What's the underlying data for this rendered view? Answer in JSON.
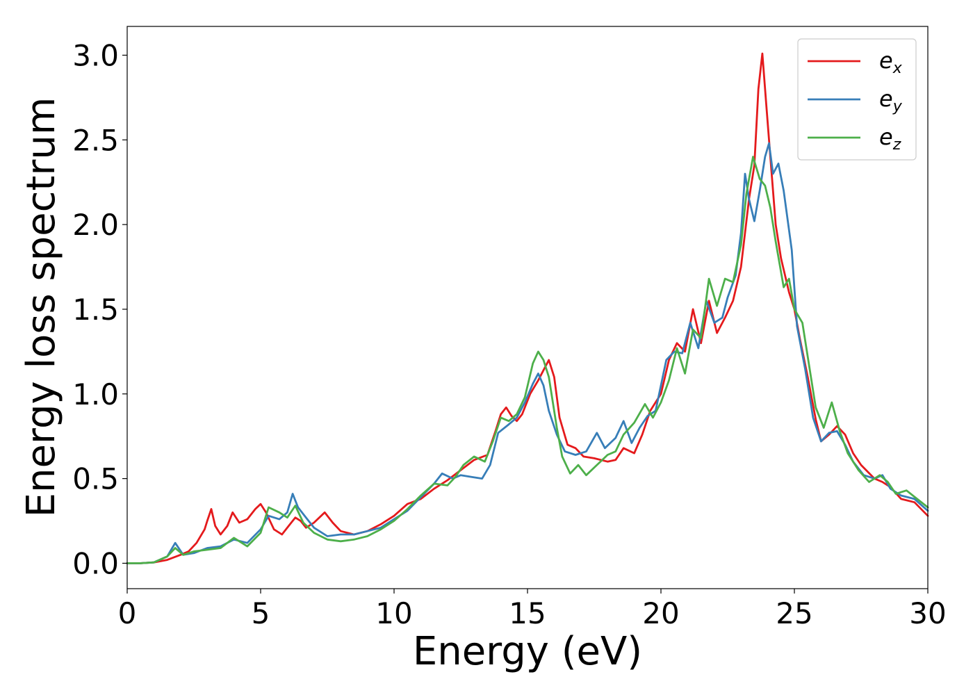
{
  "chart_data": {
    "type": "line",
    "xlabel": "Energy (eV)",
    "ylabel": "Energy loss spectrum",
    "xlim": [
      0,
      30
    ],
    "ylim": [
      -0.15,
      3.17
    ],
    "xticks": [
      0,
      5,
      10,
      15,
      20,
      25,
      30
    ],
    "xtick_labels": [
      "0",
      "5",
      "10",
      "15",
      "20",
      "25",
      "30"
    ],
    "yticks": [
      0.0,
      0.5,
      1.0,
      1.5,
      2.0,
      2.5,
      3.0
    ],
    "ytick_labels": [
      "0.0",
      "0.5",
      "1.0",
      "1.5",
      "2.0",
      "2.5",
      "3.0"
    ],
    "grid": false,
    "legend": "top-right",
    "series": [
      {
        "name": "e_x",
        "label_base": "e",
        "label_sub": "x",
        "color": "#e41a1c",
        "points": [
          [
            0,
            0.0
          ],
          [
            0.5,
            0.0
          ],
          [
            1.0,
            0.005
          ],
          [
            1.5,
            0.02
          ],
          [
            2.0,
            0.05
          ],
          [
            2.3,
            0.07
          ],
          [
            2.6,
            0.12
          ],
          [
            2.9,
            0.2
          ],
          [
            3.0,
            0.25
          ],
          [
            3.15,
            0.32
          ],
          [
            3.3,
            0.22
          ],
          [
            3.5,
            0.17
          ],
          [
            3.75,
            0.22
          ],
          [
            3.95,
            0.3
          ],
          [
            4.2,
            0.24
          ],
          [
            4.5,
            0.26
          ],
          [
            4.8,
            0.32
          ],
          [
            5.0,
            0.35
          ],
          [
            5.2,
            0.3
          ],
          [
            5.5,
            0.2
          ],
          [
            5.8,
            0.17
          ],
          [
            6.1,
            0.23
          ],
          [
            6.3,
            0.27
          ],
          [
            6.5,
            0.25
          ],
          [
            6.7,
            0.21
          ],
          [
            7.0,
            0.24
          ],
          [
            7.4,
            0.3
          ],
          [
            7.7,
            0.24
          ],
          [
            8.0,
            0.19
          ],
          [
            8.5,
            0.17
          ],
          [
            9.0,
            0.19
          ],
          [
            9.5,
            0.23
          ],
          [
            10.0,
            0.28
          ],
          [
            10.5,
            0.35
          ],
          [
            11.0,
            0.38
          ],
          [
            11.5,
            0.44
          ],
          [
            12.0,
            0.49
          ],
          [
            12.5,
            0.55
          ],
          [
            13.0,
            0.61
          ],
          [
            13.5,
            0.64
          ],
          [
            13.8,
            0.78
          ],
          [
            14.0,
            0.88
          ],
          [
            14.2,
            0.92
          ],
          [
            14.4,
            0.87
          ],
          [
            14.6,
            0.84
          ],
          [
            14.8,
            0.88
          ],
          [
            15.1,
            1.0
          ],
          [
            15.4,
            1.08
          ],
          [
            15.6,
            1.14
          ],
          [
            15.8,
            1.2
          ],
          [
            16.0,
            1.1
          ],
          [
            16.2,
            0.86
          ],
          [
            16.5,
            0.7
          ],
          [
            16.8,
            0.68
          ],
          [
            17.1,
            0.63
          ],
          [
            17.5,
            0.62
          ],
          [
            18.0,
            0.6
          ],
          [
            18.3,
            0.61
          ],
          [
            18.6,
            0.68
          ],
          [
            19.0,
            0.65
          ],
          [
            19.3,
            0.76
          ],
          [
            19.6,
            0.9
          ],
          [
            20.0,
            1.0
          ],
          [
            20.3,
            1.2
          ],
          [
            20.6,
            1.3
          ],
          [
            20.9,
            1.25
          ],
          [
            21.2,
            1.5
          ],
          [
            21.5,
            1.3
          ],
          [
            21.8,
            1.55
          ],
          [
            22.1,
            1.36
          ],
          [
            22.4,
            1.45
          ],
          [
            22.7,
            1.55
          ],
          [
            23.0,
            1.75
          ],
          [
            23.3,
            2.15
          ],
          [
            23.5,
            2.35
          ],
          [
            23.65,
            2.8
          ],
          [
            23.8,
            3.01
          ],
          [
            23.95,
            2.7
          ],
          [
            24.1,
            2.4
          ],
          [
            24.3,
            2.0
          ],
          [
            24.5,
            1.8
          ],
          [
            24.8,
            1.6
          ],
          [
            25.0,
            1.5
          ],
          [
            25.2,
            1.33
          ],
          [
            25.5,
            1.1
          ],
          [
            25.8,
            0.85
          ],
          [
            26.0,
            0.72
          ],
          [
            26.3,
            0.76
          ],
          [
            26.6,
            0.81
          ],
          [
            26.9,
            0.76
          ],
          [
            27.2,
            0.65
          ],
          [
            27.5,
            0.58
          ],
          [
            28.0,
            0.5
          ],
          [
            28.3,
            0.48
          ],
          [
            28.6,
            0.45
          ],
          [
            29.0,
            0.38
          ],
          [
            29.5,
            0.36
          ],
          [
            30.0,
            0.28
          ]
        ]
      },
      {
        "name": "e_y",
        "label_base": "e",
        "label_sub": "y",
        "color": "#377eb8",
        "points": [
          [
            0,
            0.0
          ],
          [
            0.5,
            0.0
          ],
          [
            1.0,
            0.005
          ],
          [
            1.5,
            0.04
          ],
          [
            1.8,
            0.12
          ],
          [
            2.1,
            0.05
          ],
          [
            2.5,
            0.06
          ],
          [
            3.0,
            0.09
          ],
          [
            3.5,
            0.1
          ],
          [
            4.0,
            0.14
          ],
          [
            4.5,
            0.12
          ],
          [
            5.0,
            0.2
          ],
          [
            5.3,
            0.28
          ],
          [
            5.7,
            0.26
          ],
          [
            6.0,
            0.3
          ],
          [
            6.2,
            0.41
          ],
          [
            6.4,
            0.33
          ],
          [
            6.7,
            0.27
          ],
          [
            7.0,
            0.21
          ],
          [
            7.5,
            0.16
          ],
          [
            8.0,
            0.17
          ],
          [
            8.5,
            0.17
          ],
          [
            9.0,
            0.19
          ],
          [
            9.5,
            0.21
          ],
          [
            10.0,
            0.26
          ],
          [
            10.5,
            0.31
          ],
          [
            11.0,
            0.39
          ],
          [
            11.5,
            0.47
          ],
          [
            11.8,
            0.53
          ],
          [
            12.2,
            0.5
          ],
          [
            12.5,
            0.52
          ],
          [
            12.9,
            0.51
          ],
          [
            13.3,
            0.5
          ],
          [
            13.6,
            0.58
          ],
          [
            13.9,
            0.77
          ],
          [
            14.3,
            0.82
          ],
          [
            14.6,
            0.86
          ],
          [
            14.9,
            0.95
          ],
          [
            15.2,
            1.06
          ],
          [
            15.4,
            1.12
          ],
          [
            15.6,
            1.05
          ],
          [
            15.8,
            0.9
          ],
          [
            16.1,
            0.76
          ],
          [
            16.4,
            0.66
          ],
          [
            16.8,
            0.64
          ],
          [
            17.2,
            0.66
          ],
          [
            17.6,
            0.77
          ],
          [
            17.9,
            0.68
          ],
          [
            18.3,
            0.74
          ],
          [
            18.6,
            0.84
          ],
          [
            18.9,
            0.71
          ],
          [
            19.2,
            0.8
          ],
          [
            19.5,
            0.87
          ],
          [
            19.8,
            0.9
          ],
          [
            20.2,
            1.2
          ],
          [
            20.5,
            1.25
          ],
          [
            20.8,
            1.24
          ],
          [
            21.1,
            1.42
          ],
          [
            21.4,
            1.27
          ],
          [
            21.7,
            1.55
          ],
          [
            22.0,
            1.42
          ],
          [
            22.3,
            1.45
          ],
          [
            22.5,
            1.57
          ],
          [
            22.8,
            1.7
          ],
          [
            23.0,
            1.95
          ],
          [
            23.15,
            2.3
          ],
          [
            23.3,
            2.15
          ],
          [
            23.5,
            2.02
          ],
          [
            23.7,
            2.2
          ],
          [
            23.9,
            2.4
          ],
          [
            24.05,
            2.48
          ],
          [
            24.2,
            2.3
          ],
          [
            24.4,
            2.36
          ],
          [
            24.6,
            2.2
          ],
          [
            24.9,
            1.85
          ],
          [
            25.1,
            1.4
          ],
          [
            25.4,
            1.15
          ],
          [
            25.7,
            0.86
          ],
          [
            26.0,
            0.72
          ],
          [
            26.3,
            0.77
          ],
          [
            26.6,
            0.78
          ],
          [
            26.9,
            0.7
          ],
          [
            27.2,
            0.6
          ],
          [
            27.6,
            0.52
          ],
          [
            28.0,
            0.5
          ],
          [
            28.3,
            0.52
          ],
          [
            28.6,
            0.44
          ],
          [
            29.0,
            0.4
          ],
          [
            29.5,
            0.38
          ],
          [
            30.0,
            0.31
          ]
        ]
      },
      {
        "name": "e_z",
        "label_base": "e",
        "label_sub": "z",
        "color": "#4daf4a",
        "points": [
          [
            0,
            0.0
          ],
          [
            0.5,
            0.0
          ],
          [
            1.0,
            0.005
          ],
          [
            1.5,
            0.04
          ],
          [
            1.8,
            0.09
          ],
          [
            2.1,
            0.05
          ],
          [
            2.5,
            0.07
          ],
          [
            3.0,
            0.08
          ],
          [
            3.5,
            0.09
          ],
          [
            4.0,
            0.15
          ],
          [
            4.5,
            0.1
          ],
          [
            5.0,
            0.18
          ],
          [
            5.3,
            0.33
          ],
          [
            5.7,
            0.3
          ],
          [
            6.0,
            0.27
          ],
          [
            6.3,
            0.34
          ],
          [
            6.6,
            0.24
          ],
          [
            7.0,
            0.18
          ],
          [
            7.5,
            0.14
          ],
          [
            8.0,
            0.13
          ],
          [
            8.5,
            0.14
          ],
          [
            9.0,
            0.16
          ],
          [
            9.5,
            0.2
          ],
          [
            10.0,
            0.25
          ],
          [
            10.5,
            0.32
          ],
          [
            11.0,
            0.4
          ],
          [
            11.5,
            0.47
          ],
          [
            12.0,
            0.46
          ],
          [
            12.3,
            0.51
          ],
          [
            12.6,
            0.58
          ],
          [
            13.0,
            0.63
          ],
          [
            13.4,
            0.6
          ],
          [
            13.7,
            0.72
          ],
          [
            14.0,
            0.86
          ],
          [
            14.3,
            0.84
          ],
          [
            14.6,
            0.88
          ],
          [
            14.9,
            0.98
          ],
          [
            15.2,
            1.18
          ],
          [
            15.4,
            1.25
          ],
          [
            15.6,
            1.2
          ],
          [
            15.8,
            1.1
          ],
          [
            16.1,
            0.8
          ],
          [
            16.3,
            0.63
          ],
          [
            16.6,
            0.53
          ],
          [
            16.9,
            0.58
          ],
          [
            17.2,
            0.52
          ],
          [
            17.6,
            0.58
          ],
          [
            18.0,
            0.64
          ],
          [
            18.3,
            0.66
          ],
          [
            18.6,
            0.76
          ],
          [
            19.0,
            0.83
          ],
          [
            19.4,
            0.94
          ],
          [
            19.7,
            0.86
          ],
          [
            20.0,
            0.95
          ],
          [
            20.3,
            1.08
          ],
          [
            20.6,
            1.27
          ],
          [
            20.9,
            1.12
          ],
          [
            21.2,
            1.38
          ],
          [
            21.5,
            1.33
          ],
          [
            21.8,
            1.68
          ],
          [
            22.1,
            1.52
          ],
          [
            22.4,
            1.68
          ],
          [
            22.7,
            1.66
          ],
          [
            23.0,
            1.88
          ],
          [
            23.2,
            2.18
          ],
          [
            23.45,
            2.4
          ],
          [
            23.7,
            2.27
          ],
          [
            23.9,
            2.23
          ],
          [
            24.1,
            2.1
          ],
          [
            24.3,
            1.9
          ],
          [
            24.6,
            1.63
          ],
          [
            24.8,
            1.68
          ],
          [
            25.0,
            1.5
          ],
          [
            25.3,
            1.42
          ],
          [
            25.5,
            1.22
          ],
          [
            25.8,
            0.92
          ],
          [
            26.1,
            0.8
          ],
          [
            26.4,
            0.95
          ],
          [
            26.7,
            0.78
          ],
          [
            27.0,
            0.65
          ],
          [
            27.4,
            0.55
          ],
          [
            27.8,
            0.48
          ],
          [
            28.2,
            0.52
          ],
          [
            28.5,
            0.48
          ],
          [
            28.8,
            0.41
          ],
          [
            29.2,
            0.43
          ],
          [
            29.6,
            0.38
          ],
          [
            30.0,
            0.33
          ]
        ]
      }
    ]
  }
}
